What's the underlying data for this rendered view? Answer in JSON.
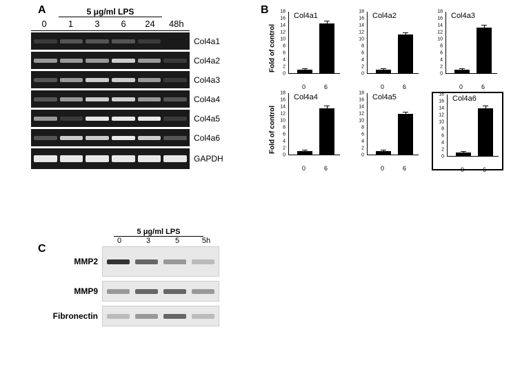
{
  "panels": {
    "a": {
      "label": "A",
      "treatment": "5 μg/ml LPS",
      "timepoints": [
        "0",
        "1",
        "3",
        "6",
        "24",
        "48h"
      ],
      "rows": [
        {
          "name": "Col4a1",
          "intensities": [
            "faint",
            "dim",
            "dim",
            "dim",
            "faint",
            "none"
          ]
        },
        {
          "name": "Col4a2",
          "intensities": [
            "med",
            "med",
            "med",
            "bright",
            "med",
            "faint"
          ]
        },
        {
          "name": "Col4a3",
          "intensities": [
            "dim",
            "med",
            "bright",
            "bright",
            "med",
            "faint"
          ]
        },
        {
          "name": "Col4a4",
          "intensities": [
            "dim",
            "med",
            "bright",
            "bright",
            "med",
            "dim"
          ]
        },
        {
          "name": "Col4a5",
          "intensities": [
            "med",
            "faint",
            "vbright",
            "vbright",
            "vbright",
            "faint"
          ]
        },
        {
          "name": "Col4a6",
          "intensities": [
            "dim",
            "bright",
            "bright",
            "vbright",
            "bright",
            "dim"
          ]
        },
        {
          "name": "GAPDH",
          "intensities": [
            "vbright",
            "vbright",
            "vbright",
            "vbright",
            "vbright",
            "vbright"
          ]
        }
      ]
    },
    "b": {
      "label": "B",
      "y_axis_label": "Fold of control",
      "y_max": 18,
      "y_tick_step": 2,
      "x_labels": [
        "0",
        "6"
      ],
      "bar_color": "#000000",
      "charts": [
        {
          "title": "Col4a1",
          "values": [
            1.0,
            14.5
          ],
          "errors": [
            0.3,
            0.6
          ],
          "boxed": false
        },
        {
          "title": "Col4a2",
          "values": [
            1.0,
            11.2
          ],
          "errors": [
            0.3,
            0.5
          ],
          "boxed": false
        },
        {
          "title": "Col4a3",
          "values": [
            1.0,
            13.2
          ],
          "errors": [
            0.2,
            0.6
          ],
          "boxed": false
        },
        {
          "title": "Col4a4",
          "values": [
            1.0,
            13.5
          ],
          "errors": [
            0.3,
            0.5
          ],
          "boxed": false
        },
        {
          "title": "Col4a5",
          "values": [
            1.0,
            11.8
          ],
          "errors": [
            0.2,
            0.5
          ],
          "boxed": false
        },
        {
          "title": "Col4a6",
          "values": [
            1.0,
            13.8
          ],
          "errors": [
            0.2,
            0.7
          ],
          "boxed": true
        }
      ]
    },
    "c": {
      "label": "C",
      "treatment": "5 μg/ml LPS",
      "timepoints": [
        "0",
        "3",
        "5",
        "5h"
      ],
      "rows": [
        {
          "name": "MMP2",
          "intensities": [
            "dark",
            "med",
            "dim",
            "faint"
          ],
          "tall": true
        },
        {
          "name": "MMP9",
          "intensities": [
            "dim",
            "med",
            "med",
            "dim"
          ],
          "tall": false
        },
        {
          "name": "Fibronectin",
          "intensities": [
            "faint",
            "dim",
            "med",
            "faint"
          ],
          "tall": false
        }
      ]
    }
  },
  "colors": {
    "background": "#ffffff",
    "gel_bg": "#1a1a1a",
    "blot_bg": "#e8e8e8",
    "text": "#000000"
  },
  "fonts": {
    "panel_label_size": 16,
    "axis_label_size": 10,
    "tick_size": 7
  }
}
